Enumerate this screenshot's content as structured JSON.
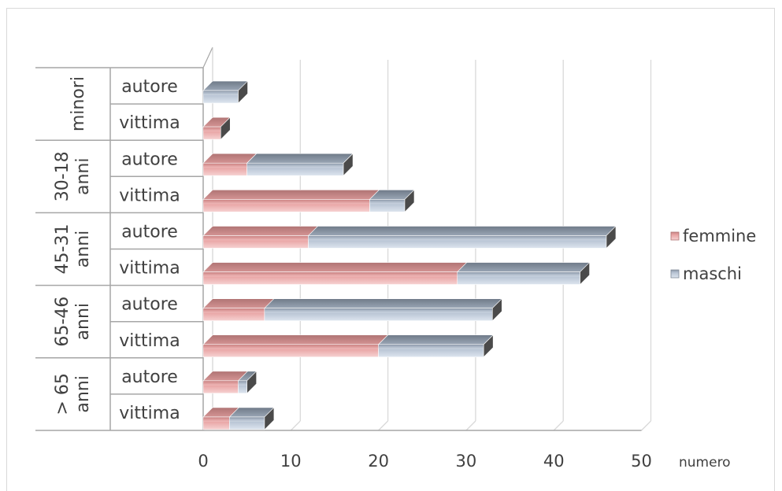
{
  "chart_data": {
    "type": "bar",
    "orientation": "horizontal",
    "stacked": true,
    "three_d": true,
    "groups": [
      {
        "label": "minori",
        "label_line2": ""
      },
      {
        "label": "30-18",
        "label_line2": "anni"
      },
      {
        "label": "45-31",
        "label_line2": "anni"
      },
      {
        "label": "65-46",
        "label_line2": "anni"
      },
      {
        "label": "> 65",
        "label_line2": "anni"
      }
    ],
    "categories": [
      {
        "group": 0,
        "label": "autore"
      },
      {
        "group": 0,
        "label": "vittima"
      },
      {
        "group": 1,
        "label": "autore"
      },
      {
        "group": 1,
        "label": "vittima"
      },
      {
        "group": 2,
        "label": "autore"
      },
      {
        "group": 2,
        "label": "vittima"
      },
      {
        "group": 3,
        "label": "autore"
      },
      {
        "group": 3,
        "label": "vittima"
      },
      {
        "group": 4,
        "label": "autore"
      },
      {
        "group": 4,
        "label": "vittima"
      }
    ],
    "series": [
      {
        "name": "femmine",
        "values": [
          0,
          2,
          5,
          19,
          12,
          29,
          7,
          20,
          4,
          3
        ],
        "color": "#e79a9a"
      },
      {
        "name": "maschi",
        "values": [
          4,
          0,
          11,
          4,
          34,
          14,
          26,
          12,
          1,
          4
        ],
        "color": "#b5c3d6"
      }
    ],
    "x_ticks": [
      "0",
      "10",
      "20",
      "30",
      "40",
      "50"
    ],
    "xlim": [
      0,
      50
    ],
    "xlabel": "numero",
    "legend_position": "right",
    "grid": true
  }
}
